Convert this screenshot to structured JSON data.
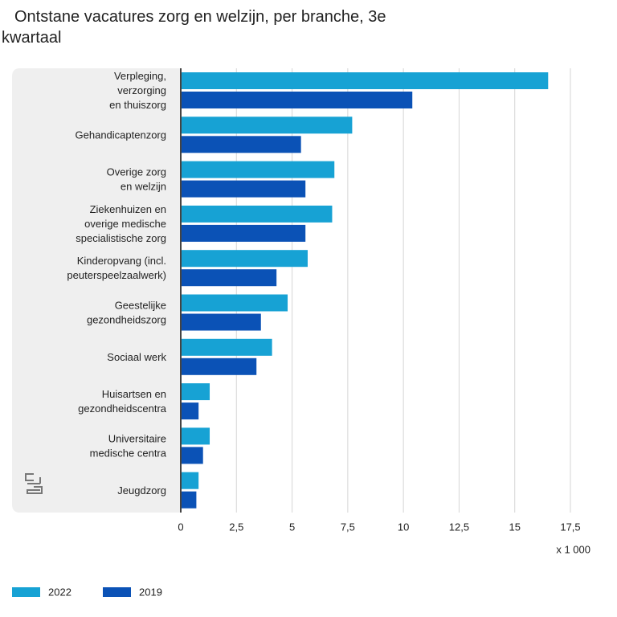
{
  "chart_data": {
    "type": "hbar",
    "title": "Ontstane vacatures zorg en welzijn, per branche, 3e kwartaal",
    "categories": [
      "Verpleging,\nverzorging\nen thuiszorg",
      "Gehandicaptenzorg",
      "Overige zorg\nen welzijn",
      "Ziekenhuizen en\noverige medische\nspecialistische zorg",
      "Kinderopvang (incl.\npeuterspeelzaalwerk)",
      "Geestelijke\ngezondheidszorg",
      "Sociaal werk",
      "Huisartsen en\ngezondheidscentra",
      "Universitaire\nmedische centra",
      "Jeugdzorg"
    ],
    "series": [
      {
        "name": "2022",
        "color": "#17a2d4",
        "values": [
          16.5,
          7.7,
          6.9,
          6.8,
          5.7,
          4.8,
          4.1,
          1.3,
          1.3,
          0.8
        ]
      },
      {
        "name": "2019",
        "color": "#0b52b6",
        "values": [
          10.4,
          5.4,
          5.6,
          5.6,
          4.3,
          3.6,
          3.4,
          0.8,
          1.0,
          0.7
        ]
      }
    ],
    "xlim": [
      0,
      17.5
    ],
    "xticks": [
      0,
      {
        "value": 2.5,
        "label": "2,5"
      },
      5,
      {
        "value": 7.5,
        "label": "7,5"
      },
      10,
      {
        "value": 12.5,
        "label": "12,5"
      },
      15,
      {
        "value": 17.5,
        "label": "17,5"
      }
    ],
    "x_unit_label": "x 1 000",
    "grid": true
  }
}
